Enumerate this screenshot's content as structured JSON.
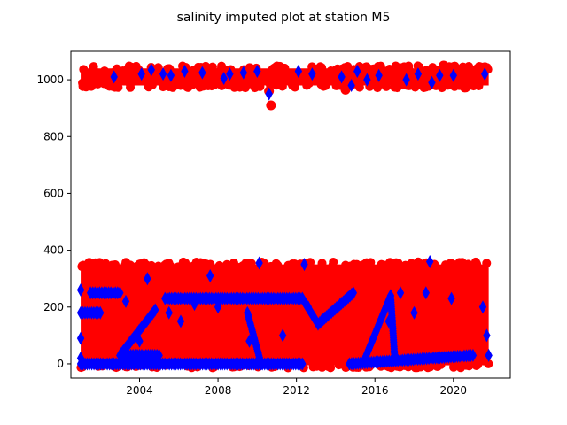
{
  "chart_data": {
    "type": "scatter",
    "title": "salinity imputed plot at station M5",
    "xlabel": "",
    "ylabel": "",
    "xlim": [
      2000.5,
      2022.9
    ],
    "ylim": [
      -50,
      1100
    ],
    "x_ticks": [
      2004,
      2008,
      2012,
      2016,
      2020
    ],
    "x_tick_labels": [
      "2004",
      "2008",
      "2012",
      "2016",
      "2020"
    ],
    "y_ticks": [
      0,
      200,
      400,
      600,
      800,
      1000
    ],
    "y_tick_labels": [
      "0",
      "200",
      "400",
      "600",
      "800",
      "1000"
    ],
    "grid": false,
    "legend": "none",
    "series": [
      {
        "marker": "circle",
        "color": "#ff0000",
        "bands": [
          {
            "x_range": [
              2001.0,
              2021.8
            ],
            "y_range": [
              980,
              1040
            ]
          },
          {
            "x_range": [
              2001.0,
              2021.8
            ],
            "y_range": [
              -5,
              350
            ]
          }
        ],
        "points": [
          {
            "x": 2010.7,
            "y": 910
          },
          {
            "x": 2010.6,
            "y": 960
          },
          {
            "x": 2014.5,
            "y": 965
          },
          {
            "x": 2019.5,
            "y": 1050
          }
        ]
      },
      {
        "marker": "diamond",
        "color": "#0000ff",
        "segments": [
          {
            "x": [
              2005.3,
              2012.3
            ],
            "y": [
              230,
              230
            ]
          },
          {
            "x": [
              2001.0,
              2012.3
            ],
            "y": [
              0,
              0
            ]
          },
          {
            "x": [
              2001.0,
              2002.0
            ],
            "y": [
              180,
              180
            ]
          },
          {
            "x": [
              2001.5,
              2003.0
            ],
            "y": [
              250,
              250
            ]
          },
          {
            "x": [
              2003.0,
              2005.0
            ],
            "y": [
              30,
              30
            ]
          },
          {
            "x": [
              2003.0,
              2004.8
            ],
            "y": [
              30,
              190
            ]
          },
          {
            "x": [
              2009.5,
              2010.2
            ],
            "y": [
              180,
              0
            ]
          },
          {
            "x": [
              2012.3,
              2013.1
            ],
            "y": [
              230,
              140
            ]
          },
          {
            "x": [
              2013.1,
              2014.9
            ],
            "y": [
              140,
              250
            ]
          },
          {
            "x": [
              2014.7,
              2021.0
            ],
            "y": [
              0,
              30
            ]
          },
          {
            "x": [
              2015.5,
              2016.8
            ],
            "y": [
              20,
              240
            ]
          },
          {
            "x": [
              2016.8,
              2017.0
            ],
            "y": [
              240,
              30
            ]
          }
        ],
        "points": [
          {
            "x": 2001.0,
            "y": 260
          },
          {
            "x": 2001.0,
            "y": 90
          },
          {
            "x": 2001.0,
            "y": 20
          },
          {
            "x": 2002.7,
            "y": 1010
          },
          {
            "x": 2003.3,
            "y": 220
          },
          {
            "x": 2004.1,
            "y": 1020
          },
          {
            "x": 2004.6,
            "y": 1035
          },
          {
            "x": 2004.4,
            "y": 300
          },
          {
            "x": 2004.0,
            "y": 80
          },
          {
            "x": 2005.2,
            "y": 1020
          },
          {
            "x": 2005.5,
            "y": 180
          },
          {
            "x": 2005.6,
            "y": 1015
          },
          {
            "x": 2006.3,
            "y": 1030
          },
          {
            "x": 2006.1,
            "y": 150
          },
          {
            "x": 2006.8,
            "y": 210
          },
          {
            "x": 2007.2,
            "y": 1025
          },
          {
            "x": 2007.6,
            "y": 310
          },
          {
            "x": 2008.3,
            "y": 1005
          },
          {
            "x": 2008.0,
            "y": 200
          },
          {
            "x": 2008.6,
            "y": 1020
          },
          {
            "x": 2009.3,
            "y": 1025
          },
          {
            "x": 2009.6,
            "y": 80
          },
          {
            "x": 2010.0,
            "y": 1030
          },
          {
            "x": 2010.1,
            "y": 355
          },
          {
            "x": 2010.6,
            "y": 950
          },
          {
            "x": 2011.3,
            "y": 100
          },
          {
            "x": 2012.1,
            "y": 1030
          },
          {
            "x": 2012.4,
            "y": 350
          },
          {
            "x": 2012.6,
            "y": 200
          },
          {
            "x": 2012.8,
            "y": 1020
          },
          {
            "x": 2014.3,
            "y": 1010
          },
          {
            "x": 2014.8,
            "y": 980
          },
          {
            "x": 2015.1,
            "y": 1030
          },
          {
            "x": 2015.6,
            "y": 1000
          },
          {
            "x": 2016.2,
            "y": 1015
          },
          {
            "x": 2016.7,
            "y": 150
          },
          {
            "x": 2017.3,
            "y": 250
          },
          {
            "x": 2017.6,
            "y": 1000
          },
          {
            "x": 2018.0,
            "y": 180
          },
          {
            "x": 2018.2,
            "y": 1020
          },
          {
            "x": 2018.6,
            "y": 250
          },
          {
            "x": 2018.8,
            "y": 360
          },
          {
            "x": 2018.9,
            "y": 990
          },
          {
            "x": 2019.3,
            "y": 1015
          },
          {
            "x": 2019.9,
            "y": 230
          },
          {
            "x": 2020.0,
            "y": 1015
          },
          {
            "x": 2021.6,
            "y": 1020
          },
          {
            "x": 2021.7,
            "y": 100
          },
          {
            "x": 2021.8,
            "y": 30
          },
          {
            "x": 2021.5,
            "y": 200
          }
        ]
      }
    ]
  }
}
